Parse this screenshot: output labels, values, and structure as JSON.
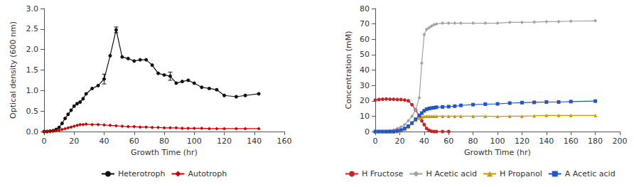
{
  "chart_data": [
    {
      "type": "line",
      "xlabel": "Growth Time (hr)",
      "ylabel": "Optical density (600 nm)",
      "xlim": [
        0,
        160
      ],
      "ylim": [
        0.0,
        3.0
      ],
      "xticks": [
        0,
        20,
        40,
        60,
        80,
        100,
        120,
        140,
        160
      ],
      "yticks": [
        {
          "value": 0.0,
          "label": "0.0"
        },
        0.5,
        {
          "value": 1.0,
          "label": "1.0"
        },
        1.5,
        {
          "value": 2.0,
          "label": "2.0"
        },
        2.5,
        {
          "value": 3.0,
          "label": "3.0"
        }
      ],
      "grid": false,
      "legend": "bottom",
      "series": [
        {
          "name": "Heterotroph",
          "color": "#111111",
          "marker": "circle",
          "x": [
            0,
            2,
            4,
            6,
            8,
            10,
            12,
            14,
            16,
            18,
            20,
            22,
            24,
            26,
            28,
            32,
            36,
            40,
            44,
            48,
            52,
            56,
            60,
            64,
            68,
            72,
            76,
            80,
            84,
            88,
            92,
            96,
            100,
            105,
            110,
            115,
            120,
            128,
            134,
            143
          ],
          "values": [
            0.0,
            0.0,
            0.01,
            0.02,
            0.05,
            0.1,
            0.2,
            0.32,
            0.42,
            0.52,
            0.62,
            0.68,
            0.72,
            0.8,
            0.92,
            1.05,
            1.12,
            1.28,
            1.85,
            2.48,
            1.82,
            1.78,
            1.72,
            1.75,
            1.75,
            1.62,
            1.42,
            1.38,
            1.35,
            1.18,
            1.22,
            1.25,
            1.18,
            1.08,
            1.05,
            1.02,
            0.88,
            0.85,
            0.88,
            0.92
          ],
          "yerr": [
            0,
            0,
            0,
            0,
            0,
            0,
            0,
            0,
            0,
            0,
            0,
            0,
            0,
            0,
            0,
            0,
            0,
            0.12,
            0,
            0.07,
            0,
            0,
            0,
            0,
            0,
            0,
            0,
            0,
            0.1,
            0,
            0,
            0,
            0,
            0,
            0,
            0,
            0,
            0,
            0,
            0
          ]
        },
        {
          "name": "Autotroph",
          "color": "#cc0000",
          "marker": "diamond",
          "x": [
            0,
            2,
            4,
            6,
            8,
            10,
            12,
            14,
            16,
            18,
            20,
            22,
            24,
            26,
            28,
            32,
            36,
            40,
            44,
            48,
            52,
            56,
            60,
            64,
            68,
            72,
            76,
            80,
            84,
            88,
            92,
            96,
            100,
            105,
            110,
            115,
            120,
            128,
            134,
            143
          ],
          "values": [
            0.0,
            0.0,
            0.0,
            0.01,
            0.02,
            0.03,
            0.05,
            0.07,
            0.09,
            0.11,
            0.13,
            0.15,
            0.17,
            0.17,
            0.18,
            0.17,
            0.17,
            0.16,
            0.15,
            0.14,
            0.13,
            0.12,
            0.12,
            0.11,
            0.11,
            0.1,
            0.1,
            0.09,
            0.09,
            0.09,
            0.08,
            0.08,
            0.08,
            0.08,
            0.07,
            0.07,
            0.07,
            0.07,
            0.07,
            0.07
          ]
        }
      ]
    },
    {
      "type": "line",
      "xlabel": "Growth Time (hr)",
      "ylabel": "Concentration (mM)",
      "xlim": [
        0,
        200
      ],
      "ylim": [
        0,
        80
      ],
      "xticks": [
        0,
        20,
        40,
        60,
        80,
        100,
        120,
        140,
        160,
        180,
        200
      ],
      "yticks": [
        0,
        10,
        20,
        30,
        40,
        50,
        60,
        70,
        80
      ],
      "grid": false,
      "legend": "bottom",
      "series": [
        {
          "name": "H Fructose",
          "color": "#cc2222",
          "marker": "circle",
          "x": [
            0,
            3,
            6,
            9,
            12,
            15,
            18,
            21,
            24,
            27,
            30,
            33,
            36,
            38,
            40,
            42,
            44,
            46,
            48,
            50,
            55,
            60
          ],
          "values": [
            20.5,
            20.8,
            21.0,
            21.2,
            21.0,
            21.0,
            20.8,
            20.8,
            20.5,
            20.0,
            17.5,
            14.0,
            10.0,
            7.0,
            4.5,
            2.0,
            0.8,
            0.2,
            0.0,
            0.0,
            0.0,
            0.0
          ]
        },
        {
          "name": "H Acetic acid",
          "color": "#a0a0a0",
          "marker": "diamond",
          "x": [
            0,
            3,
            6,
            9,
            12,
            15,
            18,
            21,
            24,
            27,
            30,
            33,
            36,
            38,
            40,
            42,
            44,
            46,
            48,
            50,
            55,
            60,
            65,
            70,
            80,
            90,
            100,
            110,
            120,
            130,
            140,
            150,
            160,
            180
          ],
          "values": [
            0,
            0,
            0,
            0,
            0.5,
            1.0,
            2.0,
            3.0,
            4.5,
            7.0,
            10.0,
            14.0,
            22.0,
            44.5,
            63.0,
            66.5,
            67.5,
            68.5,
            69.5,
            70.0,
            70.5,
            70.5,
            70.5,
            70.5,
            70.5,
            70.5,
            70.5,
            71.0,
            71.0,
            71.2,
            71.5,
            71.5,
            71.8,
            72.0
          ]
        },
        {
          "name": "H Propanol",
          "color": "#cc9900",
          "marker": "triangle",
          "x": [
            0,
            3,
            6,
            9,
            12,
            15,
            18,
            21,
            24,
            27,
            30,
            33,
            36,
            38,
            40,
            42,
            44,
            46,
            48,
            50,
            55,
            60,
            65,
            70,
            80,
            90,
            100,
            110,
            120,
            130,
            140,
            150,
            160,
            180
          ],
          "values": [
            0,
            0,
            0,
            0,
            0,
            0,
            0,
            0.5,
            1.5,
            3.0,
            5.5,
            7.5,
            8.8,
            9.5,
            9.8,
            10.0,
            10.0,
            10.0,
            10.0,
            10.0,
            10.0,
            10.0,
            10.0,
            10.0,
            10.0,
            10.0,
            9.8,
            10.0,
            10.0,
            10.2,
            10.5,
            10.5,
            10.5,
            10.5
          ]
        },
        {
          "name": "A Acetic acid",
          "color": "#2255cc",
          "marker": "square",
          "x": [
            0,
            3,
            6,
            9,
            12,
            15,
            18,
            21,
            24,
            27,
            30,
            33,
            36,
            38,
            40,
            42,
            44,
            46,
            48,
            50,
            55,
            60,
            65,
            70,
            80,
            90,
            100,
            110,
            120,
            130,
            140,
            150,
            160,
            180
          ],
          "values": [
            0,
            0,
            0,
            0,
            0,
            0,
            0.5,
            1.0,
            2.0,
            3.5,
            5.5,
            8.0,
            10.5,
            12.0,
            13.5,
            14.5,
            15.0,
            15.3,
            15.5,
            15.8,
            16.0,
            16.2,
            16.5,
            17.0,
            17.5,
            17.8,
            18.0,
            18.5,
            18.8,
            19.0,
            19.2,
            19.2,
            19.5,
            19.8
          ]
        }
      ]
    }
  ]
}
